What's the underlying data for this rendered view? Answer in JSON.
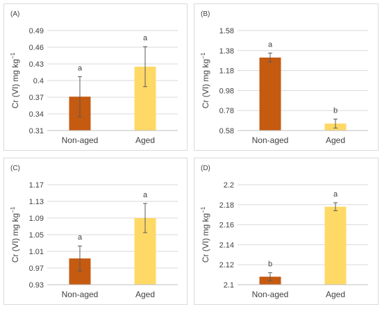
{
  "y_axis_label": {
    "main": "Cr (VI) mg kg",
    "superscript": "−1"
  },
  "colors": {
    "non_aged": "#C55A11",
    "aged": "#FFD966",
    "grid": "#d9d9d9",
    "text": "#404040",
    "error_bar": "#595959"
  },
  "chart_data": [
    {
      "panel_label": "(A)",
      "type": "bar",
      "categories": [
        "Non-aged",
        "Aged"
      ],
      "values": [
        0.371,
        0.425
      ],
      "errors": [
        0.036,
        0.036
      ],
      "significance": [
        "a",
        "a"
      ],
      "ylabel": "Cr (VI) mg kg−1",
      "ylim": [
        0.31,
        0.49
      ],
      "yticks": [
        "0.31",
        "0.34",
        "0.37",
        "0.4",
        "0.43",
        "0.46",
        "0.49"
      ],
      "grid": true
    },
    {
      "panel_label": "(B)",
      "type": "bar",
      "categories": [
        "Non-aged",
        "Aged"
      ],
      "values": [
        1.31,
        0.65
      ],
      "errors": [
        0.045,
        0.045
      ],
      "significance": [
        "a",
        "b"
      ],
      "ylabel": "Cr (VI) mg kg−1",
      "ylim": [
        0.58,
        1.58
      ],
      "yticks": [
        "0.58",
        "0.78",
        "0.98",
        "1.18",
        "1.38",
        "1.58"
      ],
      "grid": true
    },
    {
      "panel_label": "(C)",
      "type": "bar",
      "categories": [
        "Non-aged",
        "Aged"
      ],
      "values": [
        0.993,
        1.09
      ],
      "errors": [
        0.03,
        0.035
      ],
      "significance": [
        "a",
        "a"
      ],
      "ylabel": "Cr (VI) mg kg−1",
      "ylim": [
        0.93,
        1.17
      ],
      "yticks": [
        "0.93",
        "0.97",
        "1.01",
        "1.05",
        "1.09",
        "1.13",
        "1.17"
      ],
      "grid": true
    },
    {
      "panel_label": "(D)",
      "type": "bar",
      "categories": [
        "Non-aged",
        "Aged"
      ],
      "values": [
        2.108,
        2.178
      ],
      "errors": [
        0.004,
        0.004
      ],
      "significance": [
        "b",
        "a"
      ],
      "ylabel": "Cr (VI) mg kg−1",
      "ylim": [
        2.1,
        2.2
      ],
      "yticks": [
        "2.1",
        "2.12",
        "2.14",
        "2.16",
        "2.18",
        "2.2"
      ],
      "grid": true
    }
  ]
}
